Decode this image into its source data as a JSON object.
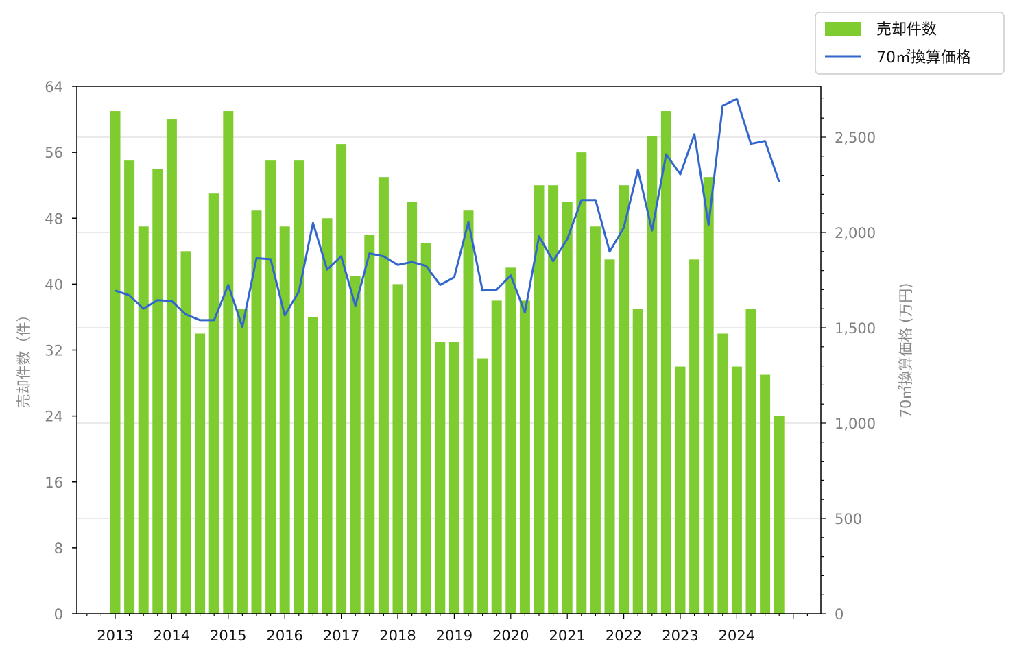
{
  "chart_data": {
    "type": "bar+line",
    "x_tick_labels": [
      "2013",
      "2014",
      "2015",
      "2016",
      "2017",
      "2018",
      "2019",
      "2020",
      "2021",
      "2022",
      "2023",
      "2024"
    ],
    "left_axis": {
      "label": "売却件数（件）",
      "ylim": [
        0,
        64
      ],
      "ticks": [
        "0",
        "8",
        "16",
        "24",
        "32",
        "40",
        "48",
        "56",
        "64"
      ]
    },
    "right_axis": {
      "label": "70㎡換算価格 (万円)",
      "ticks": [
        "0",
        "500",
        "1,000",
        "1,500",
        "2,000",
        "2,500"
      ]
    },
    "series": [
      {
        "name": "売却件数",
        "type": "bar",
        "axis": "left",
        "color": "#7fcc30",
        "values": [
          61,
          55,
          47,
          54,
          60,
          44,
          34,
          51,
          61,
          37,
          49,
          55,
          47,
          55,
          36,
          48,
          57,
          41,
          46,
          53,
          40,
          50,
          45,
          33,
          33,
          49,
          31,
          38,
          42,
          38,
          52,
          52,
          50,
          56,
          47,
          43,
          52,
          37,
          58,
          61,
          30,
          43,
          53,
          34,
          30,
          37,
          29,
          24
        ]
      },
      {
        "name": "70㎡換算価格",
        "type": "line",
        "axis": "right",
        "color": "#3366cc",
        "values": [
          1695,
          1670,
          1600,
          1645,
          1640,
          1570,
          1540,
          1540,
          1725,
          1505,
          1865,
          1860,
          1565,
          1690,
          2050,
          1805,
          1875,
          1615,
          1890,
          1875,
          1830,
          1845,
          1825,
          1725,
          1765,
          2055,
          1695,
          1700,
          1775,
          1580,
          1980,
          1850,
          1965,
          2170,
          2170,
          1900,
          2025,
          2330,
          2010,
          2410,
          2305,
          2515,
          2040,
          2665,
          2700,
          2465,
          2480,
          2265
        ]
      }
    ],
    "legend": {
      "position": "top-right outside plot",
      "entries": [
        "売却件数",
        "70㎡換算価格"
      ]
    },
    "grid": "horizontal, right axis only"
  }
}
